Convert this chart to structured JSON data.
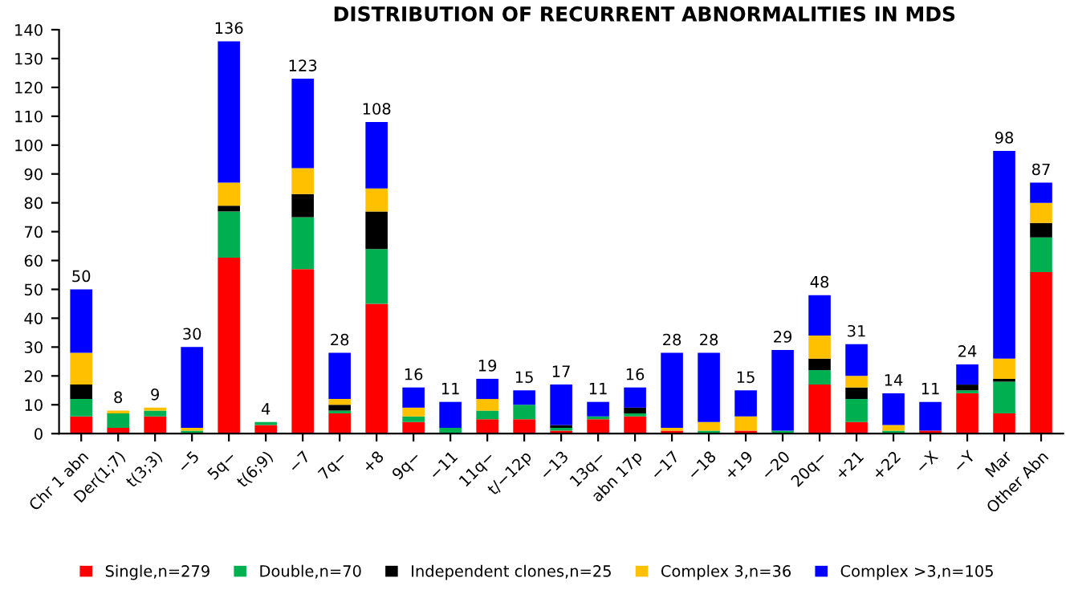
{
  "chart_data": {
    "type": "bar",
    "stacked": true,
    "title": "DISTRIBUTION OF RECURRENT ABNORMALITIES IN MDS",
    "categories": [
      "Chr 1 abn",
      "Der(1;7)",
      "t(3;3)",
      "−5",
      "5q−",
      "t(6;9)",
      "−7",
      "7q−",
      "+8",
      "9q−",
      "−11",
      "11q−",
      "t/−12p",
      "−13",
      "13q−",
      "abn 17p",
      "−17",
      "−18",
      "+19",
      "−20",
      "20q−",
      "+21",
      "+22",
      "−X",
      "−Y",
      "Mar",
      "Other Abn"
    ],
    "series": [
      {
        "name": "Single,n=279",
        "color": "#ff0000",
        "values": [
          6,
          2,
          6,
          0,
          61,
          3,
          57,
          7,
          45,
          4,
          0,
          5,
          5,
          1,
          5,
          6,
          1,
          0,
          1,
          0,
          17,
          4,
          0,
          1,
          14,
          7,
          56
        ]
      },
      {
        "name": "Double,n=70",
        "color": "#00b050",
        "values": [
          6,
          5,
          2,
          1,
          16,
          1,
          18,
          1,
          19,
          2,
          2,
          3,
          5,
          1,
          1,
          1,
          0,
          1,
          0,
          1,
          5,
          8,
          1,
          0,
          1,
          11,
          12
        ]
      },
      {
        "name": "Independent clones,n=25",
        "color": "#000000",
        "values": [
          5,
          0,
          0,
          0,
          2,
          0,
          8,
          2,
          13,
          0,
          0,
          0,
          0,
          1,
          0,
          2,
          0,
          0,
          0,
          0,
          4,
          4,
          0,
          0,
          2,
          1,
          5
        ]
      },
      {
        "name": "Complex 3,n=36",
        "color": "#ffc000",
        "values": [
          11,
          1,
          1,
          1,
          8,
          0,
          9,
          2,
          8,
          3,
          0,
          4,
          0,
          0,
          0,
          0,
          1,
          3,
          5,
          0,
          8,
          4,
          2,
          0,
          0,
          7,
          7
        ]
      },
      {
        "name": "Complex >3,n=105",
        "color": "#0000ff",
        "values": [
          22,
          0,
          0,
          28,
          49,
          0,
          31,
          16,
          23,
          7,
          9,
          7,
          5,
          14,
          5,
          7,
          26,
          24,
          9,
          28,
          14,
          11,
          11,
          10,
          7,
          72,
          7
        ]
      }
    ],
    "totals": [
      "50",
      "8",
      "9",
      "30",
      "136",
      "4",
      "123",
      "28",
      "108",
      "16",
      "11",
      "19",
      "15",
      "17",
      "11",
      "16",
      "28",
      "28",
      "15",
      "29",
      "48",
      "31",
      "14",
      "11",
      "24",
      "98",
      "87"
    ],
    "ylim": [
      0,
      140
    ],
    "yticks": [
      0,
      10,
      20,
      30,
      40,
      50,
      60,
      70,
      80,
      90,
      100,
      110,
      120,
      130,
      140
    ],
    "grid": false,
    "legend": "bottom"
  }
}
